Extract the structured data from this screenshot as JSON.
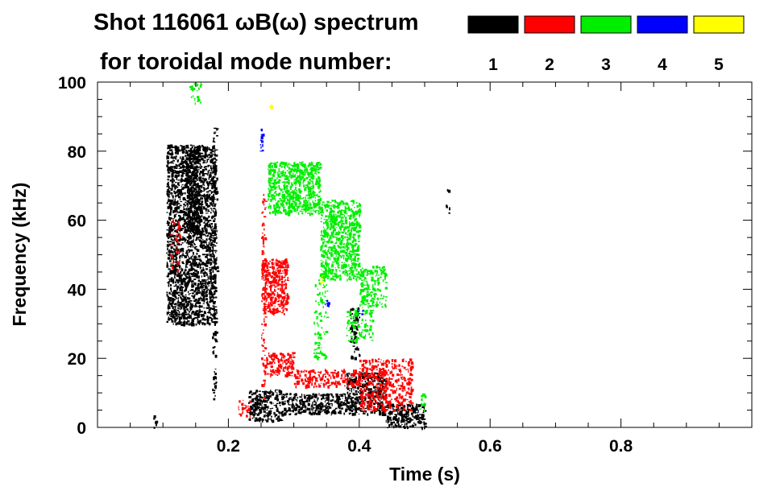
{
  "chart_data": {
    "type": "heatmap",
    "title": "Shot 116061 ωB(ω) spectrum",
    "subtitle": "for toroidal mode number:",
    "xlabel": "Time (s)",
    "ylabel": "Frequency (kHz)",
    "xlim": [
      0,
      1.0
    ],
    "ylim": [
      0,
      100
    ],
    "x_ticks": [
      0.2,
      0.4,
      0.6,
      0.8
    ],
    "x_tick_labels": [
      "0.2",
      "0.4",
      "0.6",
      "0.8"
    ],
    "y_ticks": [
      0,
      20,
      40,
      60,
      80,
      100
    ],
    "y_tick_labels": [
      "0",
      "20",
      "40",
      "60",
      "80",
      "100"
    ],
    "legend_position": "top-right",
    "legend": [
      {
        "label": "1",
        "color": "#000000"
      },
      {
        "label": "2",
        "color": "#ff0000"
      },
      {
        "label": "3",
        "color": "#00ee00"
      },
      {
        "label": "4",
        "color": "#0000ff"
      },
      {
        "label": "5",
        "color": "#ffff00"
      }
    ],
    "series": [
      {
        "name": "1",
        "color": "#000000",
        "regions": [
          {
            "t": [
              0.105,
              0.18
            ],
            "f": [
              30,
              82
            ],
            "density": 0.9
          },
          {
            "t": [
              0.135,
              0.155
            ],
            "f": [
              55,
              80
            ],
            "density": 0.95
          },
          {
            "t": [
              0.175,
              0.182
            ],
            "f": [
              8,
              87
            ],
            "density": 0.35
          },
          {
            "t": [
              0.23,
              0.28
            ],
            "f": [
              2,
              11
            ],
            "density": 0.8
          },
          {
            "t": [
              0.28,
              0.38
            ],
            "f": [
              4,
              10
            ],
            "density": 0.85
          },
          {
            "t": [
              0.38,
              0.44
            ],
            "f": [
              4,
              16
            ],
            "density": 0.85
          },
          {
            "t": [
              0.44,
              0.5
            ],
            "f": [
              0,
              7
            ],
            "density": 0.9
          },
          {
            "t": [
              0.385,
              0.4
            ],
            "f": [
              20,
              35
            ],
            "density": 0.5
          },
          {
            "t": [
              0.085,
              0.09
            ],
            "f": [
              0,
              4
            ],
            "density": 0.5
          },
          {
            "t": [
              0.532,
              0.537
            ],
            "f": [
              62,
              70
            ],
            "density": 0.3
          }
        ]
      },
      {
        "name": "2",
        "color": "#ff0000",
        "regions": [
          {
            "t": [
              0.25,
              0.29
            ],
            "f": [
              33,
              49
            ],
            "density": 0.95
          },
          {
            "t": [
              0.25,
              0.256
            ],
            "f": [
              8,
              68
            ],
            "density": 0.4
          },
          {
            "t": [
              0.255,
              0.3
            ],
            "f": [
              15,
              22
            ],
            "density": 0.7
          },
          {
            "t": [
              0.3,
              0.4
            ],
            "f": [
              12,
              17
            ],
            "density": 0.6
          },
          {
            "t": [
              0.4,
              0.48
            ],
            "f": [
              5,
              20
            ],
            "density": 0.6
          },
          {
            "t": [
              0.11,
              0.125
            ],
            "f": [
              45,
              60
            ],
            "density": 0.3
          },
          {
            "t": [
              0.215,
              0.235
            ],
            "f": [
              3,
              8
            ],
            "density": 0.4
          }
        ]
      },
      {
        "name": "3",
        "color": "#00ee00",
        "regions": [
          {
            "t": [
              0.26,
              0.34
            ],
            "f": [
              62,
              77
            ],
            "density": 0.9
          },
          {
            "t": [
              0.34,
              0.4
            ],
            "f": [
              43,
              66
            ],
            "density": 0.8
          },
          {
            "t": [
              0.4,
              0.44
            ],
            "f": [
              35,
              47
            ],
            "density": 0.6
          },
          {
            "t": [
              0.33,
              0.35
            ],
            "f": [
              20,
              45
            ],
            "density": 0.3
          },
          {
            "t": [
              0.38,
              0.42
            ],
            "f": [
              25,
              35
            ],
            "density": 0.4
          },
          {
            "t": [
              0.14,
              0.16
            ],
            "f": [
              94,
              100
            ],
            "density": 0.4
          },
          {
            "t": [
              0.49,
              0.5
            ],
            "f": [
              5,
              10
            ],
            "density": 0.4
          }
        ]
      },
      {
        "name": "4",
        "color": "#0000ff",
        "regions": [
          {
            "t": [
              0.248,
              0.252
            ],
            "f": [
              78,
              87
            ],
            "density": 0.6
          },
          {
            "t": [
              0.345,
              0.355
            ],
            "f": [
              35,
              37
            ],
            "density": 0.5
          },
          {
            "t": [
              0.395,
              0.405
            ],
            "f": [
              33,
              35
            ],
            "density": 0.5
          }
        ]
      },
      {
        "name": "5",
        "color": "#ffff00",
        "regions": [
          {
            "t": [
              0.26,
              0.265
            ],
            "f": [
              92,
              94
            ],
            "density": 0.5
          },
          {
            "t": [
              0.34,
              0.345
            ],
            "f": [
              42,
              44
            ],
            "density": 0.4
          }
        ]
      }
    ]
  }
}
